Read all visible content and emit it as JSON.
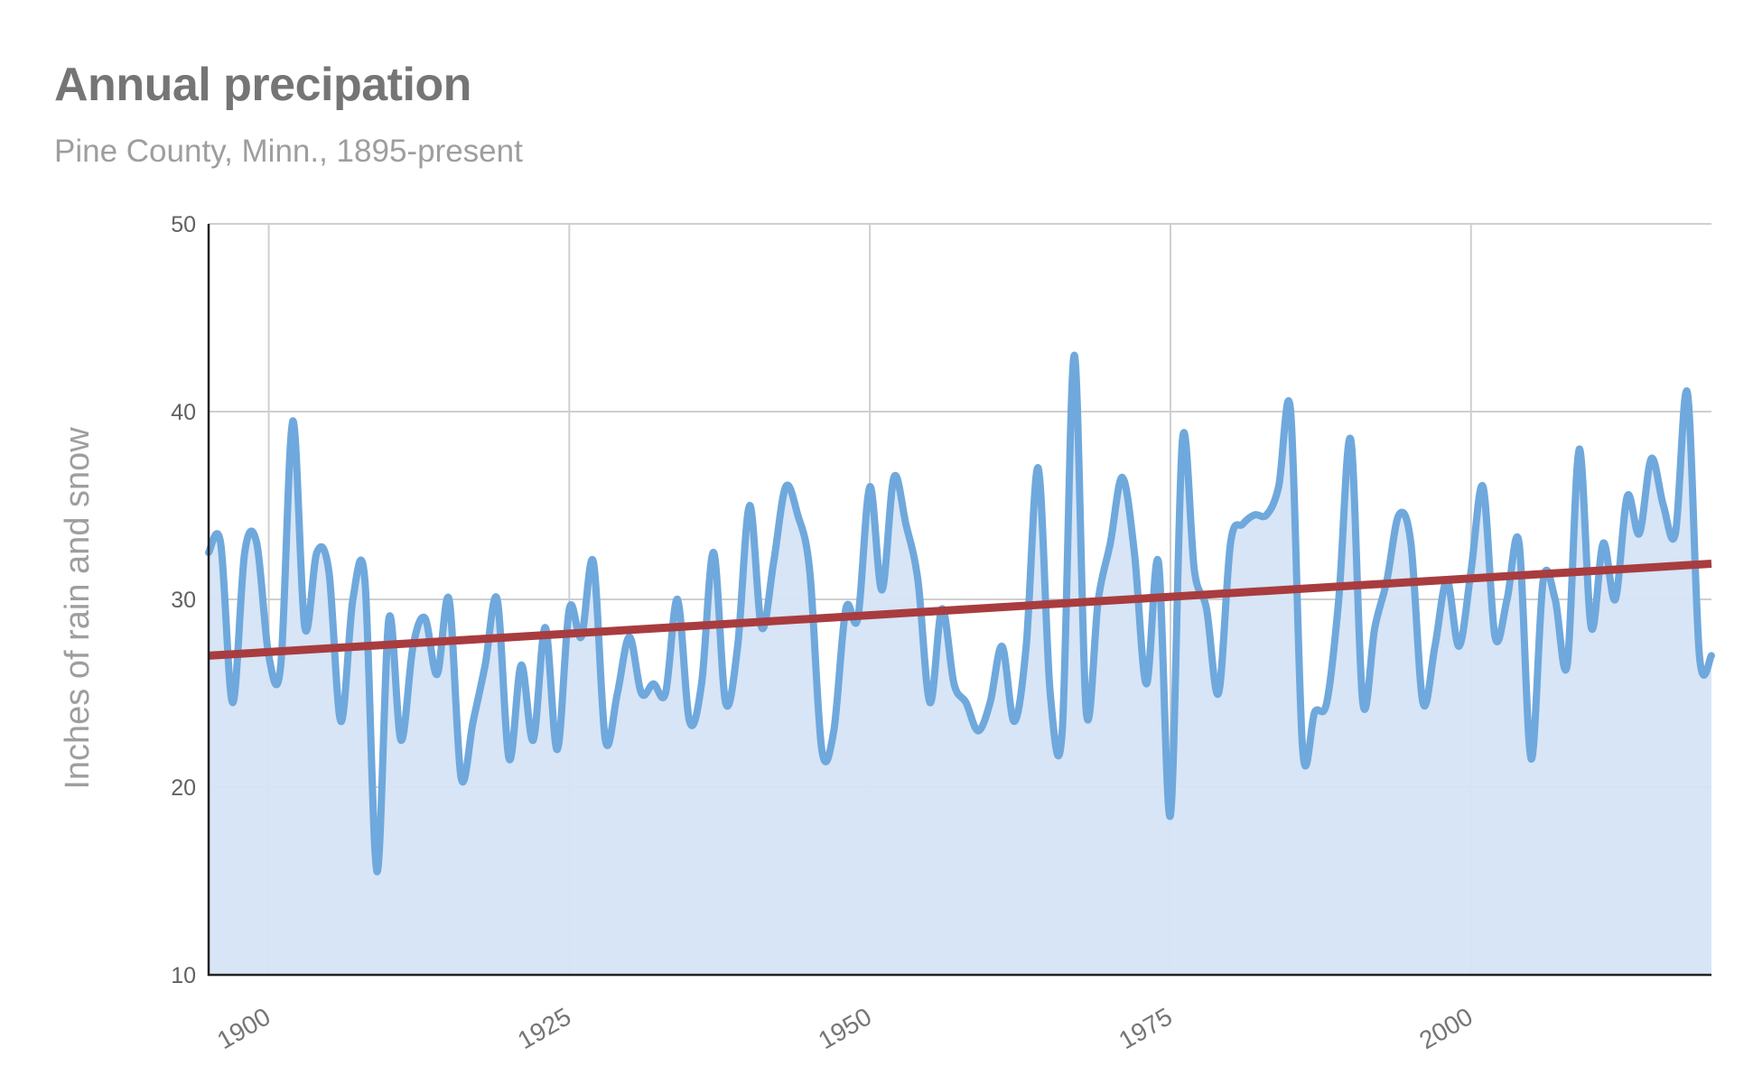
{
  "chart_data": {
    "type": "line",
    "title": "Annual precipation",
    "subtitle": "Pine County, Minn., 1895-present",
    "xlabel": "",
    "ylabel": "Inches of rain and snow",
    "xlim": [
      1895,
      2020
    ],
    "ylim": [
      10,
      50
    ],
    "y_ticks": [
      10,
      20,
      30,
      40,
      50
    ],
    "x_ticks": [
      1900,
      1925,
      1950,
      1975,
      2000
    ],
    "grid": true,
    "series": [
      {
        "color": "#6fa8dc",
        "fill": "#d5e4f5",
        "style": "smooth-area",
        "x": [
          1895,
          1896,
          1897,
          1898,
          1899,
          1900,
          1901,
          1902,
          1903,
          1904,
          1905,
          1906,
          1907,
          1908,
          1909,
          1910,
          1911,
          1912,
          1913,
          1914,
          1915,
          1916,
          1917,
          1918,
          1919,
          1920,
          1921,
          1922,
          1923,
          1924,
          1925,
          1926,
          1927,
          1928,
          1929,
          1930,
          1931,
          1932,
          1933,
          1934,
          1935,
          1936,
          1937,
          1938,
          1939,
          1940,
          1941,
          1942,
          1943,
          1944,
          1945,
          1946,
          1947,
          1948,
          1949,
          1950,
          1951,
          1952,
          1953,
          1954,
          1955,
          1956,
          1957,
          1958,
          1959,
          1960,
          1961,
          1962,
          1963,
          1964,
          1965,
          1966,
          1967,
          1968,
          1969,
          1970,
          1971,
          1972,
          1973,
          1974,
          1975,
          1976,
          1977,
          1978,
          1979,
          1980,
          1981,
          1982,
          1983,
          1984,
          1985,
          1986,
          1987,
          1988,
          1989,
          1990,
          1991,
          1992,
          1993,
          1994,
          1995,
          1996,
          1997,
          1998,
          1999,
          2000,
          2001,
          2002,
          2003,
          2004,
          2005,
          2006,
          2007,
          2008,
          2009,
          2010,
          2011,
          2012,
          2013,
          2014,
          2015,
          2016,
          2017,
          2018,
          2019,
          2020
        ],
        "values": [
          32.5,
          33.0,
          24.5,
          32.5,
          33.0,
          27.0,
          26.5,
          39.5,
          28.5,
          32.5,
          31.5,
          23.5,
          30.0,
          31.0,
          15.5,
          29.0,
          22.5,
          27.5,
          29.0,
          26.0,
          30.0,
          20.5,
          23.5,
          26.5,
          30.0,
          21.5,
          26.5,
          22.5,
          28.5,
          22.0,
          29.5,
          28.0,
          32.0,
          22.5,
          25.0,
          28.0,
          25.0,
          25.5,
          25.0,
          30.0,
          23.5,
          25.5,
          32.5,
          24.5,
          27.5,
          35.0,
          28.5,
          32.0,
          36.0,
          34.5,
          31.5,
          22.0,
          23.0,
          29.5,
          29.0,
          36.0,
          30.5,
          36.5,
          34.0,
          31.0,
          24.5,
          29.5,
          25.5,
          24.5,
          23.0,
          24.5,
          27.5,
          23.5,
          27.5,
          37.0,
          25.0,
          23.0,
          43.0,
          24.0,
          30.0,
          33.0,
          36.5,
          32.5,
          25.5,
          32.0,
          18.5,
          38.5,
          31.5,
          29.5,
          25.0,
          33.0,
          34.0,
          34.5,
          34.5,
          36.0,
          40.0,
          22.0,
          24.0,
          24.5,
          30.0,
          38.5,
          24.5,
          28.5,
          31.0,
          34.5,
          33.0,
          24.5,
          27.5,
          31.0,
          27.5,
          31.5,
          36.0,
          28.0,
          30.0,
          33.0,
          21.5,
          31.0,
          30.0,
          26.5,
          38.0,
          28.5,
          33.0,
          30.0,
          35.5,
          33.5,
          37.5,
          35.0,
          33.5,
          41.0,
          27.0,
          27.0
        ]
      },
      {
        "name": "trend",
        "color": "#a83c3f",
        "style": "line",
        "x": [
          1895,
          2020
        ],
        "values": [
          27.0,
          31.9
        ]
      }
    ]
  }
}
